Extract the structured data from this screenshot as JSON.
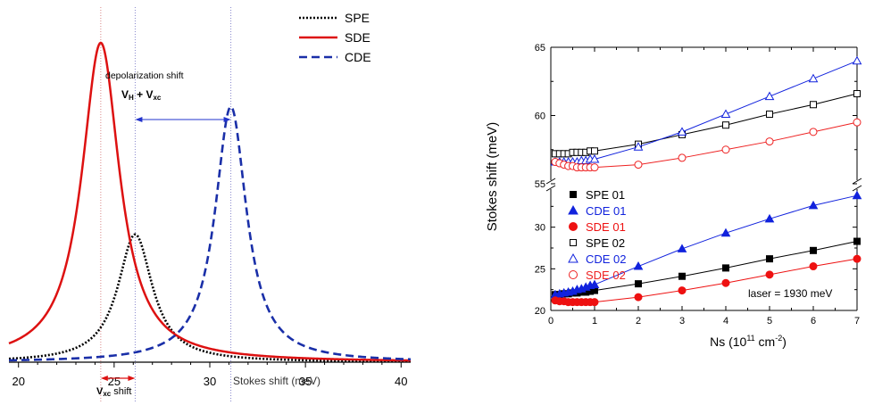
{
  "chart_data": [
    {
      "type": "line",
      "xlabel": "Stokes shift (meV)",
      "ylabel": "",
      "xlim": [
        19.5,
        40.5
      ],
      "ylim": [
        0,
        1.05
      ],
      "xticks": [
        20,
        25,
        30,
        35,
        40
      ],
      "grid": false,
      "legend_position": "top-right",
      "series": [
        {
          "name": "SPE",
          "color": "#000000",
          "dash": "dot",
          "peak": 26.1,
          "height": 0.4,
          "width": 1.1,
          "base": 0.0
        },
        {
          "name": "SDE",
          "color": "#dd1111",
          "dash": "solid",
          "peak": 24.3,
          "height": 1.0,
          "width": 1.2,
          "base": 0.0
        },
        {
          "name": "CDE",
          "color": "#1a2fa8",
          "dash": "dash",
          "peak": 31.1,
          "height": 0.8,
          "width": 1.0,
          "base": 0.0
        }
      ],
      "reference_lines": [
        24.3,
        26.1,
        31.1
      ],
      "annotations": {
        "depol_title": "depolarization shift",
        "depol_formula": "V",
        "depol_sub1": "H",
        "depol_plus": " + V",
        "depol_sub2": "xc",
        "vxc_main": "V",
        "vxc_sub": "xc",
        "vxc_tail": " shift"
      }
    },
    {
      "type": "line",
      "xlabel": "Ns  (10",
      "xlabel_sup": "11",
      "xlabel_mid": " cm",
      "xlabel_sup2": "-2",
      "xlabel_end": ")",
      "ylabel": "Stokes shift (meV)",
      "xlim": [
        0,
        7
      ],
      "xticks": [
        0,
        1,
        2,
        3,
        4,
        5,
        6,
        7
      ],
      "yticks_lower": [
        20,
        25,
        30
      ],
      "yticks_upper": [
        55,
        60,
        65
      ],
      "ylim_lower": [
        20,
        35
      ],
      "ylim_upper": [
        55,
        65
      ],
      "axis_break": true,
      "note": "laser = 1930 meV",
      "series": [
        {
          "name": "SPE 01",
          "color": "#000000",
          "marker": "square",
          "filled": true,
          "panel": "lower",
          "x": [
            0.1,
            0.2,
            0.3,
            0.4,
            0.5,
            0.6,
            0.7,
            0.8,
            0.9,
            1,
            2,
            3,
            4,
            5,
            6,
            7
          ],
          "y": [
            21.9,
            21.9,
            22.0,
            22.0,
            22.1,
            22.1,
            22.2,
            22.2,
            22.3,
            22.4,
            23.2,
            24.1,
            25.1,
            26.2,
            27.2,
            28.3
          ]
        },
        {
          "name": "CDE 01",
          "color": "#1122dd",
          "marker": "triangle",
          "filled": true,
          "panel": "lower",
          "x": [
            0.1,
            0.2,
            0.3,
            0.4,
            0.5,
            0.6,
            0.7,
            0.8,
            0.9,
            1,
            2,
            3,
            4,
            5,
            6,
            7
          ],
          "y": [
            21.9,
            22.0,
            22.1,
            22.2,
            22.3,
            22.5,
            22.6,
            22.8,
            23.0,
            23.1,
            25.3,
            27.4,
            29.3,
            31.0,
            32.6,
            33.8
          ]
        },
        {
          "name": "SDE 01",
          "color": "#ee1111",
          "marker": "circle",
          "filled": true,
          "panel": "lower",
          "x": [
            0.1,
            0.2,
            0.3,
            0.4,
            0.5,
            0.6,
            0.7,
            0.8,
            0.9,
            1,
            2,
            3,
            4,
            5,
            6,
            7
          ],
          "y": [
            21.2,
            21.1,
            21.1,
            21.0,
            21.0,
            21.0,
            21.0,
            21.0,
            21.0,
            21.0,
            21.6,
            22.4,
            23.3,
            24.3,
            25.3,
            26.2
          ]
        },
        {
          "name": "SPE 02",
          "color": "#000000",
          "marker": "square",
          "filled": false,
          "panel": "upper",
          "x": [
            0.1,
            0.2,
            0.3,
            0.4,
            0.5,
            0.6,
            0.7,
            0.8,
            0.9,
            1,
            2,
            3,
            4,
            5,
            6,
            7
          ],
          "y": [
            57.2,
            57.2,
            57.2,
            57.2,
            57.3,
            57.3,
            57.3,
            57.3,
            57.4,
            57.4,
            57.9,
            58.6,
            59.3,
            60.1,
            60.8,
            61.6
          ]
        },
        {
          "name": "CDE 02",
          "color": "#1122dd",
          "marker": "triangle",
          "filled": false,
          "panel": "upper",
          "x": [
            0.1,
            0.2,
            0.3,
            0.4,
            0.5,
            0.6,
            0.7,
            0.8,
            0.9,
            1,
            2,
            3,
            4,
            5,
            6,
            7
          ],
          "y": [
            56.6,
            56.6,
            56.6,
            56.6,
            56.6,
            56.6,
            56.7,
            56.7,
            56.8,
            56.8,
            57.7,
            58.8,
            60.1,
            61.4,
            62.7,
            64.0
          ]
        },
        {
          "name": "SDE 02",
          "color": "#ee2222",
          "marker": "circle",
          "filled": false,
          "panel": "upper",
          "x": [
            0.1,
            0.2,
            0.3,
            0.4,
            0.5,
            0.6,
            0.7,
            0.8,
            0.9,
            1,
            2,
            3,
            4,
            5,
            6,
            7
          ],
          "y": [
            56.6,
            56.5,
            56.4,
            56.3,
            56.3,
            56.2,
            56.2,
            56.2,
            56.2,
            56.2,
            56.4,
            56.9,
            57.5,
            58.1,
            58.8,
            59.5
          ]
        }
      ]
    }
  ]
}
